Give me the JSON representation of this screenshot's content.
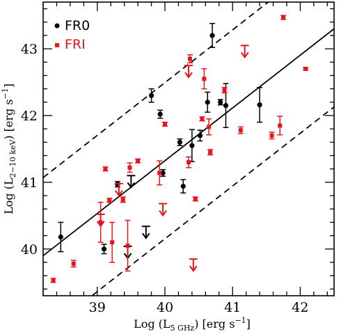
{
  "chart_data": {
    "type": "scatter",
    "title": "",
    "xlabel": {
      "pre": "Log (L",
      "sub": "5 GHz",
      "post": ") [erg s",
      "sup": "−1",
      "end": "]"
    },
    "ylabel": {
      "pre": "Log (L",
      "sub": "2−10 keV",
      "post": ") [erg s",
      "sup": "−1",
      "end": "]"
    },
    "xlim": [
      38.2,
      42.5
    ],
    "ylim": [
      39.3,
      43.7
    ],
    "xticks": [
      "39",
      "40",
      "41",
      "42"
    ],
    "yticks": [
      "40",
      "41",
      "42",
      "43"
    ],
    "xtick_values": [
      39,
      40,
      41,
      42
    ],
    "ytick_values": [
      40,
      41,
      42,
      43
    ],
    "grid": false,
    "legend_position": "top-left",
    "colors": {
      "FR0": "#000000",
      "FRI": "#e8141c"
    },
    "series": [
      {
        "name": "FR0",
        "points": [
          {
            "x": 38.46,
            "y": 40.18,
            "err": [
              0.22,
              0.22
            ]
          },
          {
            "x": 39.1,
            "y": 40.0,
            "err": [
              0.07,
              0.07
            ]
          },
          {
            "x": 39.3,
            "y": 40.97,
            "err": [
              0.04,
              0.04
            ]
          },
          {
            "x": 39.45,
            "y": 40.04,
            "upper": true
          },
          {
            "x": 39.5,
            "y": 41.1,
            "upper": true
          },
          {
            "x": 39.72,
            "y": 40.34,
            "upper": true
          },
          {
            "x": 39.8,
            "y": 42.3,
            "err": [
              0.1,
              0.1
            ]
          },
          {
            "x": 39.93,
            "y": 42.02,
            "err": [
              0.06,
              0.06
            ]
          },
          {
            "x": 39.97,
            "y": 41.14,
            "err": [
              0.05,
              0.05
            ]
          },
          {
            "x": 40.22,
            "y": 41.6,
            "err": [
              0.05,
              0.05
            ]
          },
          {
            "x": 40.27,
            "y": 40.94,
            "err": [
              0.1,
              0.1
            ]
          },
          {
            "x": 40.4,
            "y": 41.55,
            "err": [
              0.24,
              0.24
            ]
          },
          {
            "x": 40.52,
            "y": 41.7,
            "err": [
              0.08,
              0.08
            ]
          },
          {
            "x": 40.63,
            "y": 42.2,
            "err": [
              0.15,
              0.15
            ]
          },
          {
            "x": 40.7,
            "y": 43.2,
            "err": [
              0.18,
              0.18
            ]
          },
          {
            "x": 40.82,
            "y": 42.2,
            "err": [
              0.04,
              0.04
            ]
          },
          {
            "x": 40.9,
            "y": 42.15,
            "err": [
              0.33,
              0.33
            ]
          },
          {
            "x": 41.4,
            "y": 42.16,
            "err": [
              0.26,
              0.26
            ]
          }
        ]
      },
      {
        "name": "FRI",
        "points": [
          {
            "x": 38.35,
            "y": 39.53,
            "err": [
              0.03,
              0.03
            ]
          },
          {
            "x": 38.65,
            "y": 39.78,
            "err": [
              0.05,
              0.05
            ]
          },
          {
            "x": 39.05,
            "y": 40.4,
            "err": [
              0.3,
              0.3
            ]
          },
          {
            "x": 39.05,
            "y": 40.52,
            "upper": true
          },
          {
            "x": 39.12,
            "y": 41.2,
            "err": [
              0.03,
              0.03
            ]
          },
          {
            "x": 39.18,
            "y": 40.73,
            "err": [
              0.03,
              0.03
            ]
          },
          {
            "x": 39.22,
            "y": 40.1,
            "err": [
              0.3,
              0.3
            ]
          },
          {
            "x": 39.32,
            "y": 40.98,
            "upper": true
          },
          {
            "x": 39.38,
            "y": 40.74,
            "err": [
              0.04,
              0.04
            ]
          },
          {
            "x": 39.45,
            "y": 40.05,
            "err": [
              0.38,
              0.38
            ]
          },
          {
            "x": 39.48,
            "y": 41.22,
            "err": [
              0.07,
              0.07
            ]
          },
          {
            "x": 39.6,
            "y": 41.32,
            "err": [
              0.03,
              0.03
            ]
          },
          {
            "x": 39.92,
            "y": 41.14,
            "err": [
              0.18,
              0.18
            ]
          },
          {
            "x": 39.97,
            "y": 40.68,
            "upper": true
          },
          {
            "x": 40.0,
            "y": 41.87,
            "err": [
              0.03,
              0.03
            ]
          },
          {
            "x": 40.35,
            "y": 41.3,
            "err": [
              0.08,
              0.08
            ]
          },
          {
            "x": 40.35,
            "y": 42.75,
            "upper": true
          },
          {
            "x": 40.37,
            "y": 42.85,
            "err": [
              0.06,
              0.06
            ]
          },
          {
            "x": 40.42,
            "y": 39.85,
            "upper": true
          },
          {
            "x": 40.45,
            "y": 40.75,
            "err": [
              0.03,
              0.03
            ]
          },
          {
            "x": 40.55,
            "y": 41.95,
            "err": [
              0.03,
              0.03
            ]
          },
          {
            "x": 40.58,
            "y": 42.55,
            "err": [
              0.15,
              0.15
            ]
          },
          {
            "x": 40.65,
            "y": 41.83,
            "err": [
              0.12,
              0.12
            ]
          },
          {
            "x": 40.67,
            "y": 41.45,
            "err": [
              0.04,
              0.04
            ]
          },
          {
            "x": 40.88,
            "y": 42.38,
            "err": [
              0.04,
              0.04
            ]
          },
          {
            "x": 41.12,
            "y": 41.78,
            "err": [
              0.05,
              0.05
            ]
          },
          {
            "x": 41.18,
            "y": 43.05,
            "upper": true
          },
          {
            "x": 41.58,
            "y": 41.7,
            "err": [
              0.05,
              0.05
            ]
          },
          {
            "x": 41.7,
            "y": 41.85,
            "err": [
              0.14,
              0.14
            ]
          },
          {
            "x": 41.75,
            "y": 43.47,
            "err": [
              0.03,
              0.03
            ]
          },
          {
            "x": 42.08,
            "y": 42.7,
            "err": [
              0.02,
              0.02
            ]
          }
        ]
      }
    ],
    "fit_lines": [
      {
        "name": "correlation",
        "style": "solid",
        "from": [
          38.2,
          39.9
        ],
        "to": [
          42.5,
          43.3
        ]
      },
      {
        "name": "upper-bound",
        "style": "dashed",
        "from": [
          38.2,
          41.07
        ],
        "to": [
          42.5,
          44.47
        ]
      },
      {
        "name": "lower-bound",
        "style": "dashed",
        "from": [
          38.2,
          38.73
        ],
        "to": [
          42.5,
          42.13
        ]
      }
    ]
  }
}
